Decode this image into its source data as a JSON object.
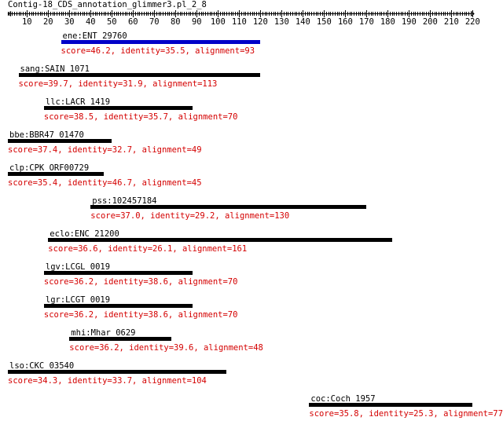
{
  "query_title": "Contig-18_CDS_annotation_glimmer3.pl_2_8",
  "ruler_ticks": [
    "10",
    "20",
    "30",
    "40",
    "50",
    "60",
    "70",
    "80",
    "90",
    "100",
    "110",
    "120",
    "130",
    "140",
    "150",
    "160",
    "170",
    "180",
    "190",
    "200",
    "210",
    "220"
  ],
  "ruler_end": 220,
  "colors": {
    "bar_default": "#000000",
    "bar_highlight": "#0000c8",
    "stats": "#d40000"
  },
  "hits": [
    {
      "name": "ene:ENT_29760",
      "start": 26,
      "end": 120,
      "highlighted": true,
      "stats": "score=46.2, identity=35.5, alignment=93"
    },
    {
      "name": "sang:SAIN_1071",
      "start": 6,
      "end": 120,
      "highlighted": false,
      "stats": "score=39.7, identity=31.9, alignment=113"
    },
    {
      "name": "llc:LACR_1419",
      "start": 18,
      "end": 88,
      "highlighted": false,
      "stats": "score=38.5, identity=35.7, alignment=70"
    },
    {
      "name": "bbe:BBR47_01470",
      "start": 1,
      "end": 50,
      "highlighted": false,
      "stats": "score=37.4, identity=32.7, alignment=49"
    },
    {
      "name": "clp:CPK_ORF00729",
      "start": 1,
      "end": 46,
      "highlighted": false,
      "stats": "score=35.4, identity=46.7, alignment=45"
    },
    {
      "name": "pss:102457184",
      "start": 40,
      "end": 170,
      "highlighted": false,
      "stats": "score=37.0, identity=29.2, alignment=130"
    },
    {
      "name": "eclo:ENC_21200",
      "start": 20,
      "end": 182,
      "highlighted": false,
      "stats": "score=36.6, identity=26.1, alignment=161"
    },
    {
      "name": "lgv:LCGL_0019",
      "start": 18,
      "end": 88,
      "highlighted": false,
      "stats": "score=36.2, identity=38.6, alignment=70"
    },
    {
      "name": "lgr:LCGT_0019",
      "start": 18,
      "end": 88,
      "highlighted": false,
      "stats": "score=36.2, identity=38.6, alignment=70"
    },
    {
      "name": "mhi:Mhar_0629",
      "start": 30,
      "end": 78,
      "highlighted": false,
      "stats": "score=36.2, identity=39.6, alignment=48"
    },
    {
      "name": "lso:CKC_03540",
      "start": 1,
      "end": 104,
      "highlighted": false,
      "stats": "score=34.3, identity=33.7, alignment=104"
    },
    {
      "name": "coc:Coch_1957",
      "start": 143,
      "end": 220,
      "highlighted": false,
      "stats": "score=35.8, identity=25.3, alignment=77"
    }
  ]
}
